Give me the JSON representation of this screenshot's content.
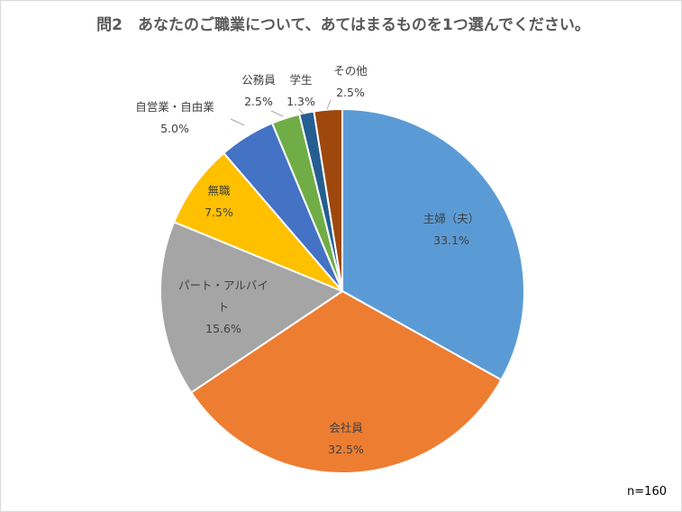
{
  "title": "問2　あなたのご職業について、あてはまるものを1つ選んでください。",
  "note": "n=160",
  "chart_data": {
    "type": "pie",
    "title": "問2　あなたのご職業について、あてはまるものを1つ選んでください。",
    "unit": "%",
    "slices": [
      {
        "label": "主婦（夫）",
        "value": 33.1,
        "value_label": "33.1%",
        "color": "#5b9bd5"
      },
      {
        "label": "会社員",
        "value": 32.5,
        "value_label": "32.5%",
        "color": "#ed7d31"
      },
      {
        "label": "パート・アルバイト",
        "value": 15.6,
        "value_label": "15.6%",
        "color": "#a5a5a5"
      },
      {
        "label": "無職",
        "value": 7.5,
        "value_label": "7.5%",
        "color": "#ffc000"
      },
      {
        "label": "自営業・自由業",
        "value": 5.0,
        "value_label": "5.0%",
        "color": "#4472c4"
      },
      {
        "label": "公務員",
        "value": 2.5,
        "value_label": "2.5%",
        "color": "#70ad47"
      },
      {
        "label": "学生",
        "value": 1.3,
        "value_label": "1.3%",
        "color": "#255e91"
      },
      {
        "label": "その他",
        "value": 2.5,
        "value_label": "2.5%",
        "color": "#9e480e"
      }
    ]
  }
}
